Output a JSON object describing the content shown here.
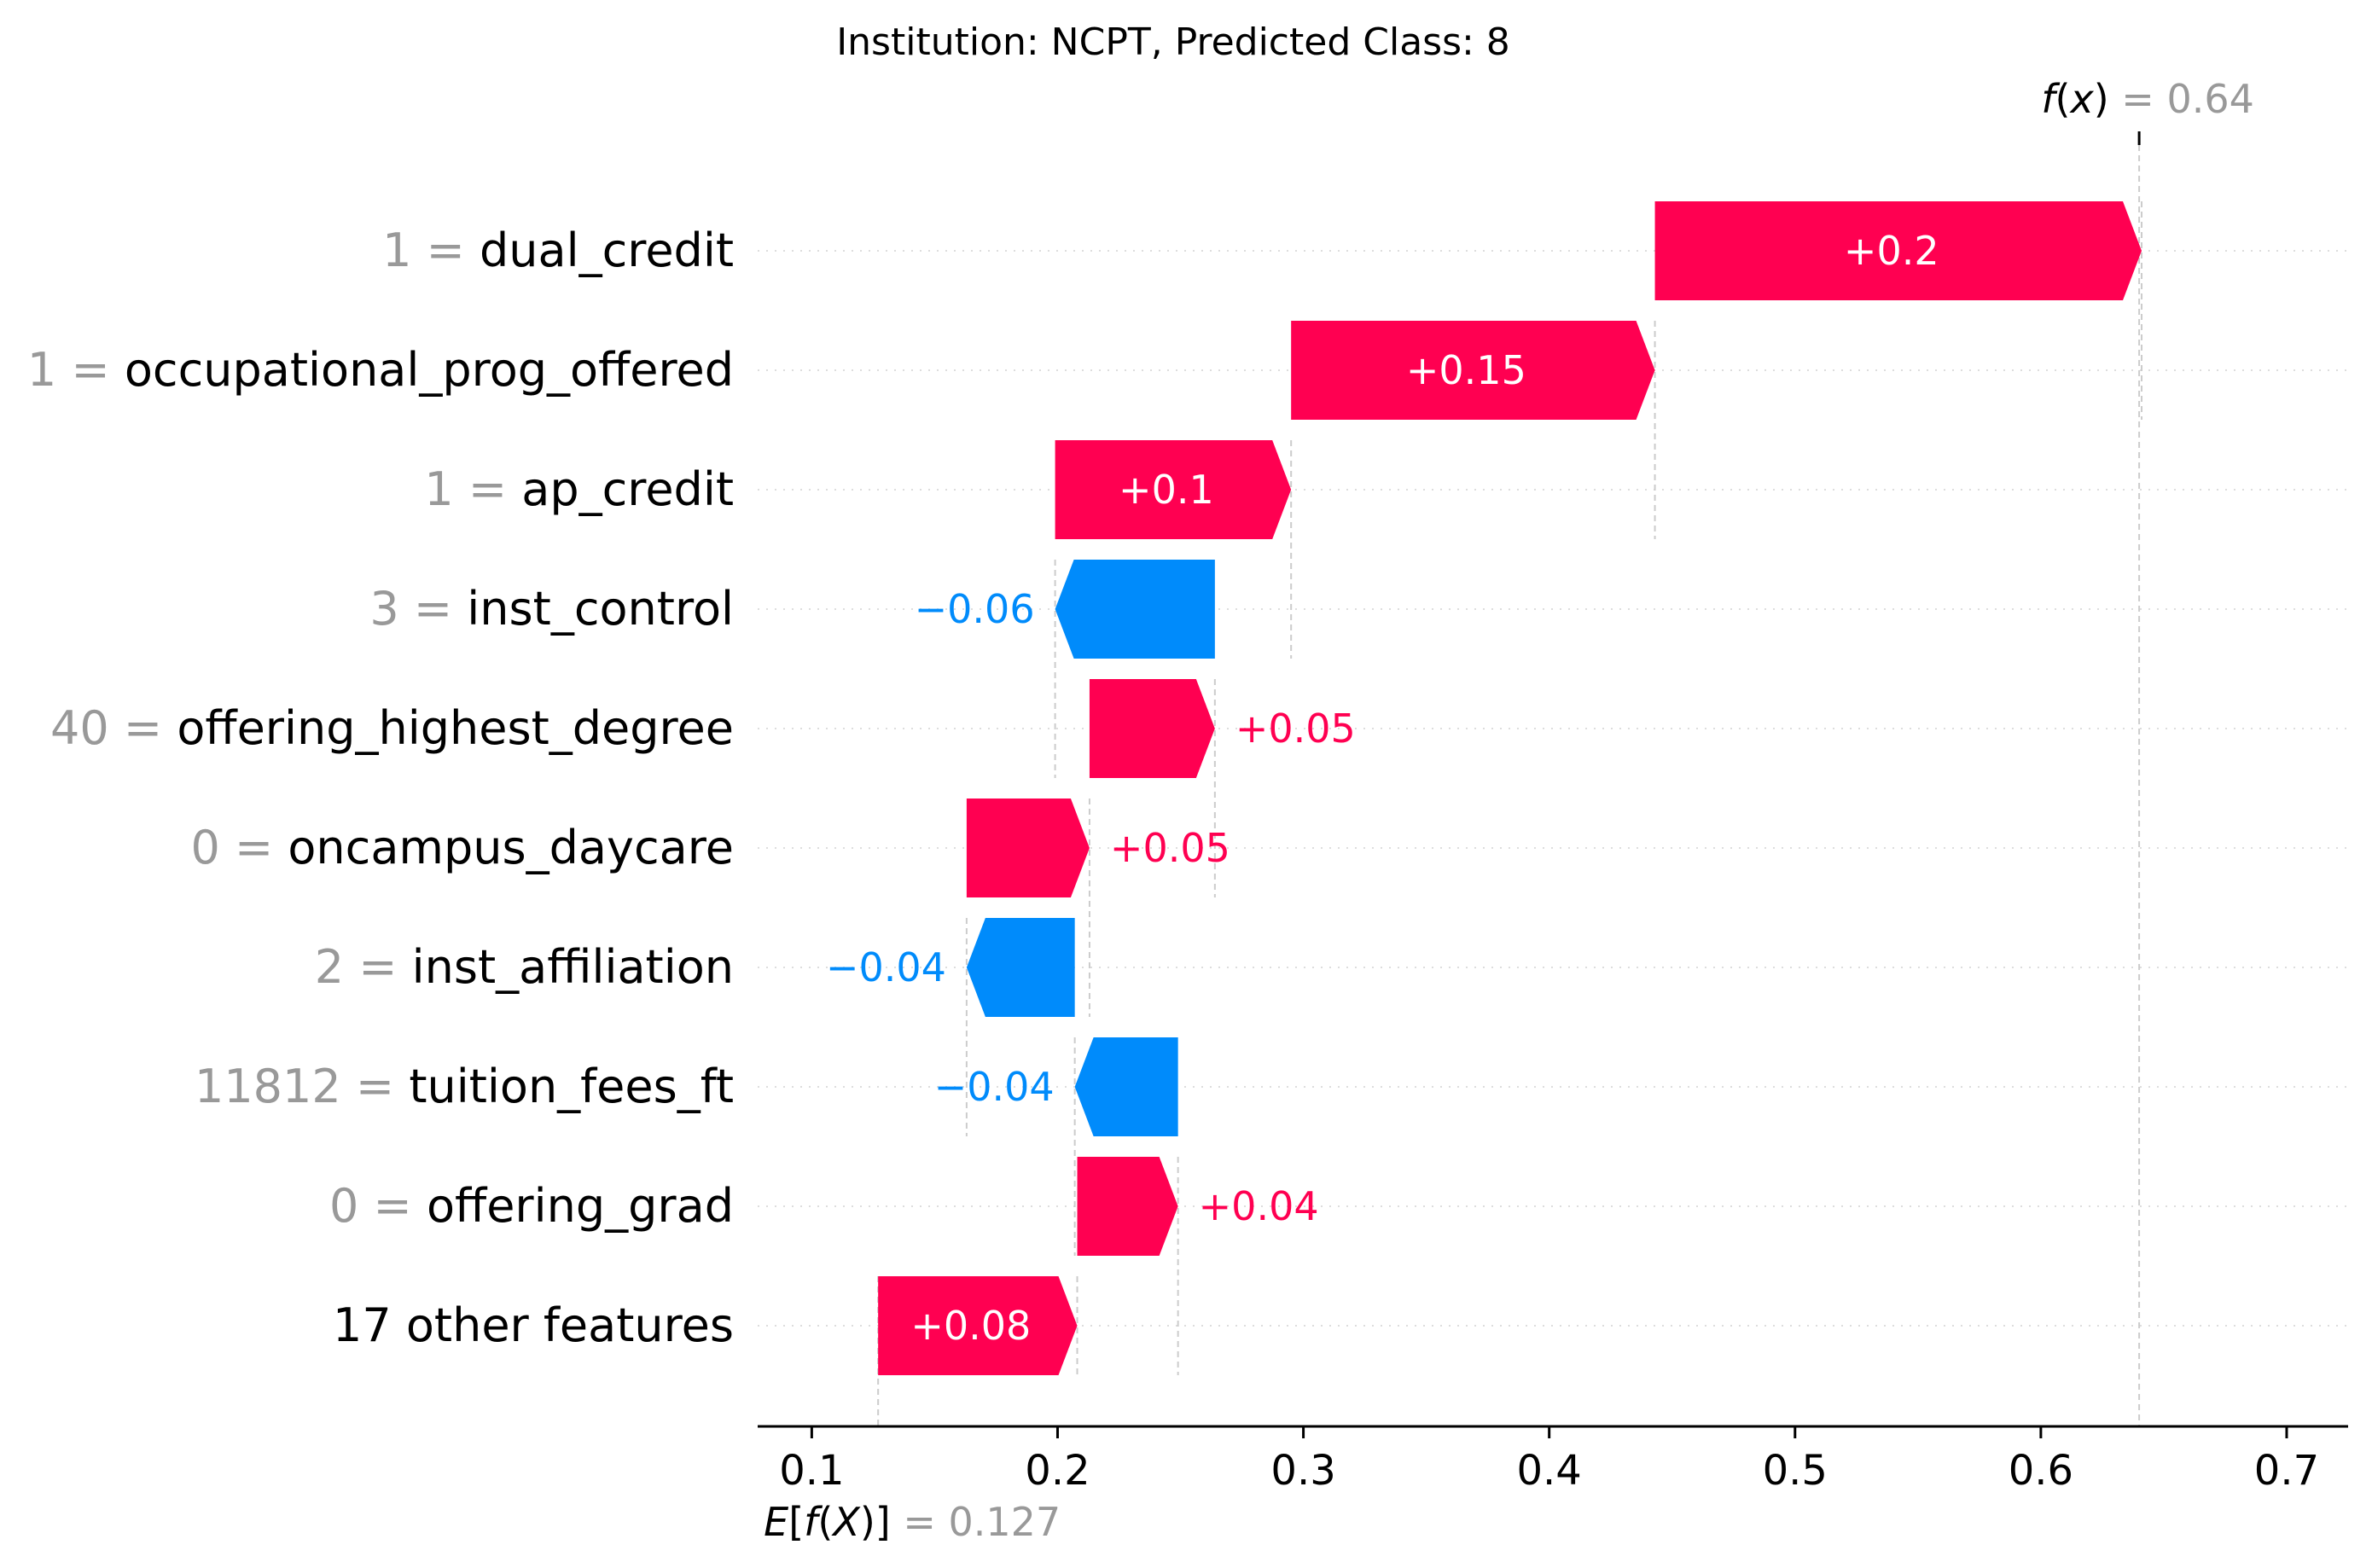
{
  "chart_data": {
    "type": "waterfall",
    "title": "Institution: NCPT, Predicted Class: 8",
    "base_value": 0.127,
    "base_value_label": "0.127",
    "fx_value": 0.64,
    "fx_value_label": "0.64",
    "xlim": [
      0.078,
      0.725
    ],
    "ticks": [
      0.1,
      0.2,
      0.3,
      0.4,
      0.5,
      0.6,
      0.7
    ],
    "tick_labels": [
      "0.1",
      "0.2",
      "0.3",
      "0.4",
      "0.5",
      "0.6",
      "0.7"
    ],
    "features": [
      {
        "value": "1",
        "name": "dual_credit",
        "contribution": 0.198,
        "label": "+0.2",
        "start": 0.443,
        "end": 0.641
      },
      {
        "value": "1",
        "name": "occupational_prog_offered",
        "contribution": 0.148,
        "label": "+0.15",
        "start": 0.295,
        "end": 0.443
      },
      {
        "value": "1",
        "name": "ap_credit",
        "contribution": 0.096,
        "label": "+0.1",
        "start": 0.199,
        "end": 0.295
      },
      {
        "value": "3",
        "name": "inst_control",
        "contribution": -0.065,
        "label": "−0.06",
        "start": 0.264,
        "end": 0.199
      },
      {
        "value": "40",
        "name": "offering_highest_degree",
        "contribution": 0.051,
        "label": "+0.05",
        "start": 0.213,
        "end": 0.264
      },
      {
        "value": "0",
        "name": "oncampus_daycare",
        "contribution": 0.05,
        "label": "+0.05",
        "start": 0.163,
        "end": 0.213
      },
      {
        "value": "2",
        "name": "inst_affiliation",
        "contribution": -0.044,
        "label": "−0.04",
        "start": 0.207,
        "end": 0.163
      },
      {
        "value": "11812",
        "name": "tuition_fees_ft",
        "contribution": -0.042,
        "label": "−0.04",
        "start": 0.249,
        "end": 0.207
      },
      {
        "value": "0",
        "name": "offering_grad",
        "contribution": 0.041,
        "label": "+0.04",
        "start": 0.208,
        "end": 0.249
      },
      {
        "value": "",
        "name": "17 other features",
        "contribution": 0.081,
        "label": "+0.08",
        "start": 0.127,
        "end": 0.208
      }
    ],
    "colors": {
      "positive": "#ff0051",
      "negative": "#008bfb",
      "muted": "#999999",
      "grid": "#cccccc",
      "axis": "#000000"
    }
  }
}
